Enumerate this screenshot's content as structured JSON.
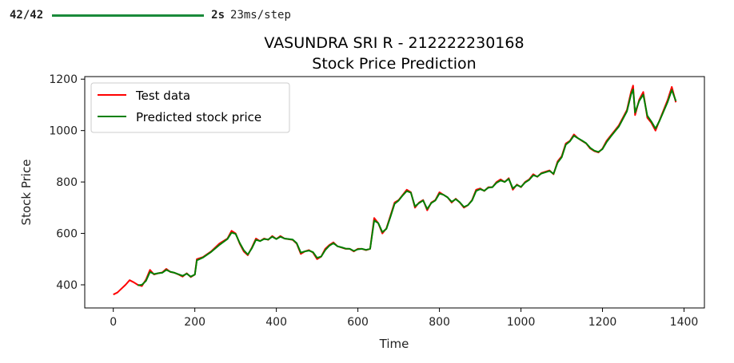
{
  "progress": {
    "count": "42/42",
    "fraction": 1.0,
    "time": "2s",
    "rate": "23ms/step",
    "bar_color": "#1a8a3a"
  },
  "chart_data": {
    "type": "line",
    "title": "VASUNDRA SRI R - 212222230168",
    "subtitle": "Stock Price Prediction",
    "xlabel": "Time",
    "ylabel": "Stock Price",
    "xlim": [
      -70,
      1450
    ],
    "ylim": [
      310,
      1210
    ],
    "xticks": [
      "0",
      "200",
      "400",
      "600",
      "800",
      "1000",
      "1200",
      "1400"
    ],
    "yticks": [
      "400",
      "600",
      "800",
      "1000",
      "1200"
    ],
    "xtick_values": [
      0,
      200,
      400,
      600,
      800,
      1000,
      1200,
      1400
    ],
    "ytick_values": [
      400,
      600,
      800,
      1000,
      1200
    ],
    "grid": false,
    "legend_position": "top-left",
    "series": [
      {
        "name": "Test data",
        "color": "#ff0000",
        "points": [
          [
            0,
            362
          ],
          [
            10,
            370
          ],
          [
            20,
            385
          ],
          [
            30,
            400
          ],
          [
            40,
            418
          ],
          [
            50,
            410
          ],
          [
            60,
            400
          ],
          [
            70,
            395
          ],
          [
            80,
            420
          ],
          [
            90,
            458
          ],
          [
            100,
            440
          ],
          [
            110,
            445
          ],
          [
            120,
            448
          ],
          [
            130,
            462
          ],
          [
            140,
            450
          ],
          [
            150,
            447
          ],
          [
            160,
            440
          ],
          [
            170,
            432
          ],
          [
            180,
            445
          ],
          [
            190,
            430
          ],
          [
            200,
            440
          ],
          [
            205,
            500
          ],
          [
            220,
            508
          ],
          [
            240,
            530
          ],
          [
            260,
            560
          ],
          [
            280,
            580
          ],
          [
            290,
            610
          ],
          [
            300,
            600
          ],
          [
            310,
            560
          ],
          [
            320,
            530
          ],
          [
            330,
            515
          ],
          [
            340,
            545
          ],
          [
            350,
            580
          ],
          [
            360,
            570
          ],
          [
            370,
            580
          ],
          [
            380,
            575
          ],
          [
            390,
            590
          ],
          [
            400,
            578
          ],
          [
            410,
            590
          ],
          [
            420,
            580
          ],
          [
            440,
            575
          ],
          [
            450,
            560
          ],
          [
            460,
            520
          ],
          [
            470,
            530
          ],
          [
            480,
            535
          ],
          [
            490,
            525
          ],
          [
            500,
            500
          ],
          [
            510,
            510
          ],
          [
            520,
            540
          ],
          [
            530,
            555
          ],
          [
            540,
            565
          ],
          [
            550,
            550
          ],
          [
            560,
            545
          ],
          [
            570,
            540
          ],
          [
            580,
            540
          ],
          [
            590,
            530
          ],
          [
            600,
            540
          ],
          [
            610,
            540
          ],
          [
            620,
            535
          ],
          [
            630,
            540
          ],
          [
            640,
            660
          ],
          [
            650,
            640
          ],
          [
            660,
            600
          ],
          [
            670,
            620
          ],
          [
            680,
            670
          ],
          [
            690,
            720
          ],
          [
            700,
            730
          ],
          [
            710,
            750
          ],
          [
            720,
            770
          ],
          [
            730,
            760
          ],
          [
            740,
            700
          ],
          [
            750,
            720
          ],
          [
            760,
            730
          ],
          [
            770,
            690
          ],
          [
            780,
            720
          ],
          [
            790,
            730
          ],
          [
            800,
            760
          ],
          [
            810,
            750
          ],
          [
            820,
            740
          ],
          [
            830,
            720
          ],
          [
            840,
            735
          ],
          [
            850,
            720
          ],
          [
            860,
            700
          ],
          [
            870,
            710
          ],
          [
            880,
            730
          ],
          [
            890,
            770
          ],
          [
            900,
            775
          ],
          [
            910,
            765
          ],
          [
            920,
            780
          ],
          [
            930,
            780
          ],
          [
            940,
            800
          ],
          [
            950,
            810
          ],
          [
            960,
            800
          ],
          [
            970,
            815
          ],
          [
            980,
            770
          ],
          [
            990,
            790
          ],
          [
            1000,
            780
          ],
          [
            1010,
            800
          ],
          [
            1020,
            810
          ],
          [
            1030,
            830
          ],
          [
            1040,
            820
          ],
          [
            1050,
            835
          ],
          [
            1060,
            840
          ],
          [
            1070,
            845
          ],
          [
            1080,
            830
          ],
          [
            1090,
            880
          ],
          [
            1100,
            900
          ],
          [
            1110,
            950
          ],
          [
            1120,
            960
          ],
          [
            1130,
            985
          ],
          [
            1140,
            970
          ],
          [
            1150,
            960
          ],
          [
            1160,
            950
          ],
          [
            1170,
            930
          ],
          [
            1180,
            920
          ],
          [
            1190,
            915
          ],
          [
            1200,
            930
          ],
          [
            1210,
            960
          ],
          [
            1220,
            980
          ],
          [
            1230,
            1000
          ],
          [
            1240,
            1020
          ],
          [
            1250,
            1050
          ],
          [
            1260,
            1080
          ],
          [
            1270,
            1150
          ],
          [
            1275,
            1175
          ],
          [
            1280,
            1060
          ],
          [
            1290,
            1120
          ],
          [
            1300,
            1150
          ],
          [
            1310,
            1050
          ],
          [
            1320,
            1030
          ],
          [
            1330,
            1000
          ],
          [
            1340,
            1040
          ],
          [
            1350,
            1080
          ],
          [
            1360,
            1120
          ],
          [
            1370,
            1170
          ],
          [
            1380,
            1110
          ]
        ]
      },
      {
        "name": "Predicted stock price",
        "color": "#008000",
        "points": [
          [
            60,
            398
          ],
          [
            70,
            400
          ],
          [
            80,
            415
          ],
          [
            90,
            450
          ],
          [
            100,
            442
          ],
          [
            110,
            445
          ],
          [
            120,
            447
          ],
          [
            130,
            458
          ],
          [
            140,
            451
          ],
          [
            150,
            447
          ],
          [
            160,
            441
          ],
          [
            170,
            435
          ],
          [
            180,
            443
          ],
          [
            190,
            432
          ],
          [
            200,
            440
          ],
          [
            205,
            495
          ],
          [
            220,
            506
          ],
          [
            240,
            528
          ],
          [
            260,
            555
          ],
          [
            280,
            578
          ],
          [
            290,
            603
          ],
          [
            300,
            598
          ],
          [
            310,
            563
          ],
          [
            320,
            535
          ],
          [
            330,
            518
          ],
          [
            340,
            542
          ],
          [
            350,
            575
          ],
          [
            360,
            570
          ],
          [
            370,
            578
          ],
          [
            380,
            576
          ],
          [
            390,
            587
          ],
          [
            400,
            578
          ],
          [
            410,
            587
          ],
          [
            420,
            580
          ],
          [
            440,
            576
          ],
          [
            450,
            562
          ],
          [
            460,
            525
          ],
          [
            470,
            530
          ],
          [
            480,
            533
          ],
          [
            490,
            527
          ],
          [
            500,
            505
          ],
          [
            510,
            510
          ],
          [
            520,
            535
          ],
          [
            530,
            552
          ],
          [
            540,
            562
          ],
          [
            550,
            550
          ],
          [
            560,
            546
          ],
          [
            570,
            541
          ],
          [
            580,
            540
          ],
          [
            590,
            532
          ],
          [
            600,
            538
          ],
          [
            610,
            540
          ],
          [
            620,
            536
          ],
          [
            630,
            540
          ],
          [
            640,
            650
          ],
          [
            650,
            640
          ],
          [
            660,
            605
          ],
          [
            670,
            618
          ],
          [
            680,
            665
          ],
          [
            690,
            715
          ],
          [
            700,
            728
          ],
          [
            710,
            748
          ],
          [
            720,
            765
          ],
          [
            730,
            758
          ],
          [
            740,
            705
          ],
          [
            750,
            718
          ],
          [
            760,
            728
          ],
          [
            770,
            695
          ],
          [
            780,
            718
          ],
          [
            790,
            728
          ],
          [
            800,
            755
          ],
          [
            810,
            750
          ],
          [
            820,
            740
          ],
          [
            830,
            723
          ],
          [
            840,
            733
          ],
          [
            850,
            721
          ],
          [
            860,
            703
          ],
          [
            870,
            710
          ],
          [
            880,
            728
          ],
          [
            890,
            765
          ],
          [
            900,
            772
          ],
          [
            910,
            766
          ],
          [
            920,
            778
          ],
          [
            930,
            780
          ],
          [
            940,
            797
          ],
          [
            950,
            806
          ],
          [
            960,
            800
          ],
          [
            970,
            812
          ],
          [
            980,
            775
          ],
          [
            990,
            788
          ],
          [
            1000,
            781
          ],
          [
            1010,
            798
          ],
          [
            1020,
            808
          ],
          [
            1030,
            826
          ],
          [
            1040,
            821
          ],
          [
            1050,
            833
          ],
          [
            1060,
            838
          ],
          [
            1070,
            843
          ],
          [
            1080,
            832
          ],
          [
            1090,
            875
          ],
          [
            1100,
            896
          ],
          [
            1110,
            945
          ],
          [
            1120,
            958
          ],
          [
            1130,
            980
          ],
          [
            1140,
            970
          ],
          [
            1150,
            961
          ],
          [
            1160,
            951
          ],
          [
            1170,
            933
          ],
          [
            1180,
            922
          ],
          [
            1190,
            917
          ],
          [
            1200,
            928
          ],
          [
            1210,
            955
          ],
          [
            1220,
            976
          ],
          [
            1230,
            996
          ],
          [
            1240,
            1015
          ],
          [
            1250,
            1045
          ],
          [
            1260,
            1075
          ],
          [
            1270,
            1140
          ],
          [
            1275,
            1160
          ],
          [
            1280,
            1070
          ],
          [
            1290,
            1115
          ],
          [
            1300,
            1140
          ],
          [
            1310,
            1058
          ],
          [
            1320,
            1035
          ],
          [
            1330,
            1008
          ],
          [
            1340,
            1038
          ],
          [
            1350,
            1075
          ],
          [
            1360,
            1112
          ],
          [
            1370,
            1158
          ],
          [
            1380,
            1115
          ]
        ]
      }
    ]
  }
}
